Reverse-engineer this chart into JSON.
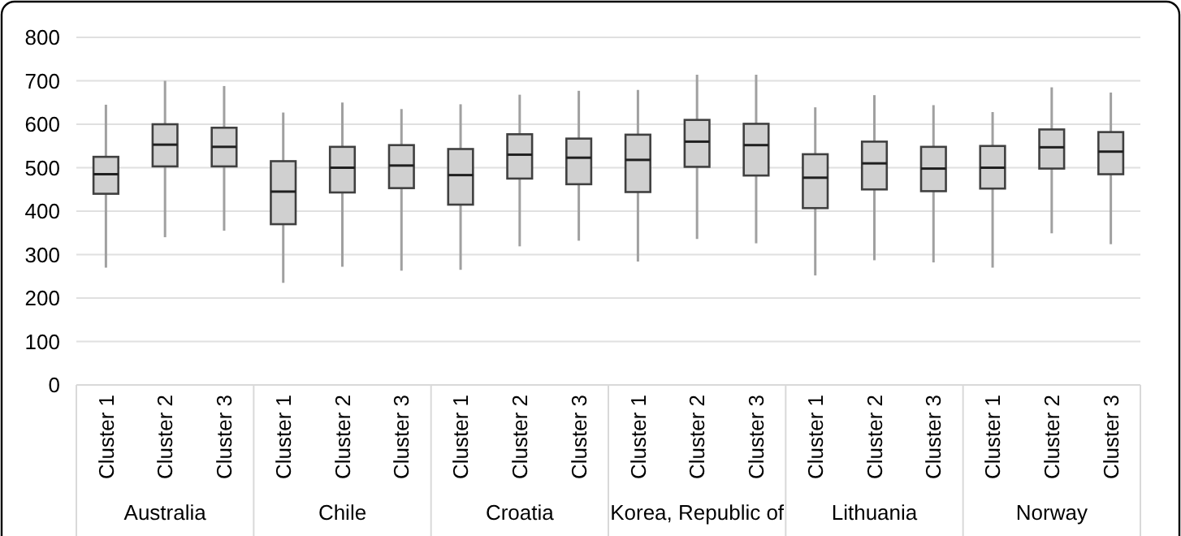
{
  "chart_data": {
    "type": "box",
    "categories": [
      "Cluster 1",
      "Cluster 2",
      "Cluster 3",
      "Cluster 1",
      "Cluster 2",
      "Cluster 3",
      "Cluster 1",
      "Cluster 2",
      "Cluster 3",
      "Cluster 1",
      "Cluster 2",
      "Cluster 3",
      "Cluster 1",
      "Cluster 2",
      "Cluster 3",
      "Cluster 1",
      "Cluster 2",
      "Cluster 3"
    ],
    "annotations": [
      "Australia",
      "Chile",
      "Croatia",
      "Korea, Republic of",
      "Lithuania",
      "Norway"
    ],
    "boxes": [
      {
        "low": 270,
        "q1": 440,
        "median": 485,
        "q3": 525,
        "high": 645
      },
      {
        "low": 340,
        "q1": 503,
        "median": 553,
        "q3": 600,
        "high": 700
      },
      {
        "low": 355,
        "q1": 503,
        "median": 548,
        "q3": 592,
        "high": 688
      },
      {
        "low": 235,
        "q1": 370,
        "median": 445,
        "q3": 515,
        "high": 627
      },
      {
        "low": 272,
        "q1": 443,
        "median": 500,
        "q3": 548,
        "high": 650
      },
      {
        "low": 263,
        "q1": 453,
        "median": 505,
        "q3": 552,
        "high": 635
      },
      {
        "low": 265,
        "q1": 415,
        "median": 483,
        "q3": 543,
        "high": 646
      },
      {
        "low": 319,
        "q1": 475,
        "median": 530,
        "q3": 577,
        "high": 668
      },
      {
        "low": 332,
        "q1": 462,
        "median": 523,
        "q3": 567,
        "high": 677
      },
      {
        "low": 284,
        "q1": 444,
        "median": 518,
        "q3": 576,
        "high": 679
      },
      {
        "low": 336,
        "q1": 502,
        "median": 560,
        "q3": 610,
        "high": 714
      },
      {
        "low": 326,
        "q1": 482,
        "median": 552,
        "q3": 601,
        "high": 714
      },
      {
        "low": 252,
        "q1": 407,
        "median": 477,
        "q3": 531,
        "high": 639
      },
      {
        "low": 287,
        "q1": 450,
        "median": 510,
        "q3": 560,
        "high": 667
      },
      {
        "low": 282,
        "q1": 446,
        "median": 498,
        "q3": 548,
        "high": 644
      },
      {
        "low": 270,
        "q1": 452,
        "median": 500,
        "q3": 550,
        "high": 628
      },
      {
        "low": 349,
        "q1": 498,
        "median": 547,
        "q3": 588,
        "high": 685
      },
      {
        "low": 324,
        "q1": 485,
        "median": 537,
        "q3": 582,
        "high": 673
      }
    ],
    "color": "#d0d0d0",
    "ylim": [
      0,
      800
    ],
    "yticks": [
      0,
      100,
      200,
      300,
      400,
      500,
      600,
      700,
      800
    ],
    "grid": "y"
  }
}
